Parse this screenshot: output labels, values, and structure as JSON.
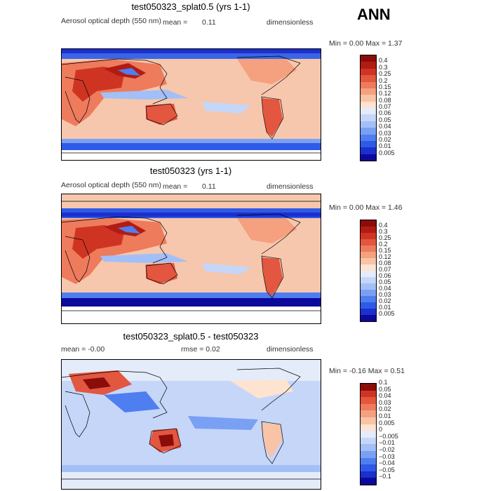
{
  "figure": {
    "season": "ANN"
  },
  "panels": [
    {
      "title": "test050323_splat0.5 (yrs 1-1)",
      "variable": "Aerosol optical depth (550 nm)",
      "stat_left": "mean =",
      "stat_left_val": "0.11",
      "units": "dimensionless",
      "minmax": "Min =    0.00 Max =    1.37"
    },
    {
      "title": "test050323 (yrs 1-1)",
      "variable": "Aerosol optical depth (550 nm)",
      "stat_left": "mean =",
      "stat_left_val": "0.11",
      "units": "dimensionless",
      "minmax": "Min =    0.00 Max =    1.46"
    },
    {
      "title": "test050323_splat0.5 - test050323",
      "stat_left": "mean =   -0.00",
      "stat_mid": "rmse =    0.02",
      "units": "dimensionless",
      "minmax": "Min =   -0.16 Max =    0.51"
    }
  ],
  "colors": {
    "ocean_base": "#f6c7ad",
    "coast": "#000000",
    "abs_scale": [
      "#0c0a9a",
      "#1c2fcf",
      "#2f5ae6",
      "#4f7ef0",
      "#7aa0f4",
      "#a3bff7",
      "#c5d6f8",
      "#e4ecf9",
      "#fde3d0",
      "#f9c3a5",
      "#f5a07e",
      "#ee7b5c",
      "#e35640",
      "#cf3423",
      "#b01c14",
      "#8b0d0a"
    ],
    "diff_scale": [
      "#0c0a9a",
      "#1c2fcf",
      "#2f5ae6",
      "#4f7ef0",
      "#7aa0f4",
      "#a3bff7",
      "#c5d6f8",
      "#e4ecf9",
      "#fde3d0",
      "#f9c3a5",
      "#f5a07e",
      "#ee7b5c",
      "#e35640",
      "#cf3423",
      "#8b0d0a"
    ]
  },
  "chart_data": [
    {
      "type": "heatmap",
      "title": "test050323_splat0.5 (yrs 1-1)",
      "variable": "Aerosol optical depth (550 nm)",
      "units": "dimensionless",
      "mean": 0.11,
      "min": 0.0,
      "max": 1.37,
      "colorbar_levels": [
        "0.005",
        "0.01",
        "0.02",
        "0.03",
        "0.04",
        "0.05",
        "0.06",
        "0.07",
        "0.08",
        "0.12",
        "0.15",
        "0.2",
        "0.25",
        "0.3",
        "0.4"
      ]
    },
    {
      "type": "heatmap",
      "title": "test050323 (yrs 1-1)",
      "variable": "Aerosol optical depth (550 nm)",
      "units": "dimensionless",
      "mean": 0.11,
      "min": 0.0,
      "max": 1.46,
      "colorbar_levels": [
        "0.005",
        "0.01",
        "0.02",
        "0.03",
        "0.04",
        "0.05",
        "0.06",
        "0.07",
        "0.08",
        "0.12",
        "0.15",
        "0.2",
        "0.25",
        "0.3",
        "0.4"
      ]
    },
    {
      "type": "heatmap",
      "title": "test050323_splat0.5 - test050323",
      "units": "dimensionless",
      "mean": -0.0,
      "rmse": 0.02,
      "min": -0.16,
      "max": 0.51,
      "colorbar_levels": [
        "−0.1",
        "−0.05",
        "−0.04",
        "−0.03",
        "−0.02",
        "−0.01",
        "−0.005",
        "0",
        "0.005",
        "0.01",
        "0.02",
        "0.03",
        "0.04",
        "0.05",
        "0.1"
      ]
    }
  ]
}
